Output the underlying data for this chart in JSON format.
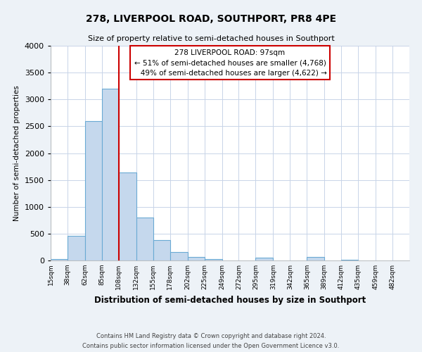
{
  "title": "278, LIVERPOOL ROAD, SOUTHPORT, PR8 4PE",
  "subtitle": "Size of property relative to semi-detached houses in Southport",
  "xlabel": "Distribution of semi-detached houses by size in Southport",
  "ylabel": "Number of semi-detached properties",
  "footer_line1": "Contains HM Land Registry data © Crown copyright and database right 2024.",
  "footer_line2": "Contains public sector information licensed under the Open Government Licence v3.0.",
  "bin_labels": [
    "15sqm",
    "38sqm",
    "62sqm",
    "85sqm",
    "108sqm",
    "132sqm",
    "155sqm",
    "178sqm",
    "202sqm",
    "225sqm",
    "249sqm",
    "272sqm",
    "295sqm",
    "319sqm",
    "342sqm",
    "365sqm",
    "389sqm",
    "412sqm",
    "435sqm",
    "459sqm",
    "482sqm"
  ],
  "bar_heights": [
    20,
    460,
    2600,
    3200,
    1640,
    800,
    380,
    160,
    60,
    20,
    5,
    0,
    50,
    0,
    0,
    60,
    0,
    10,
    0,
    0,
    0
  ],
  "bar_color": "#c5d8ed",
  "bar_edge_color": "#6aaad4",
  "ylim": [
    0,
    4000
  ],
  "property_label": "278 LIVERPOOL ROAD: 97sqm",
  "pct_smaller": 51,
  "pct_larger": 49,
  "count_smaller": 4768,
  "count_larger": 4622,
  "vline_x": 108,
  "vline_color": "#cc0000",
  "annotation_box_color": "#cc0000",
  "bin_edges": [
    15,
    38,
    62,
    85,
    108,
    132,
    155,
    178,
    202,
    225,
    249,
    272,
    295,
    319,
    342,
    365,
    389,
    412,
    435,
    459,
    482,
    505
  ],
  "background_color": "#edf2f7",
  "plot_bg_color": "#ffffff",
  "grid_color": "#c8d4e8"
}
